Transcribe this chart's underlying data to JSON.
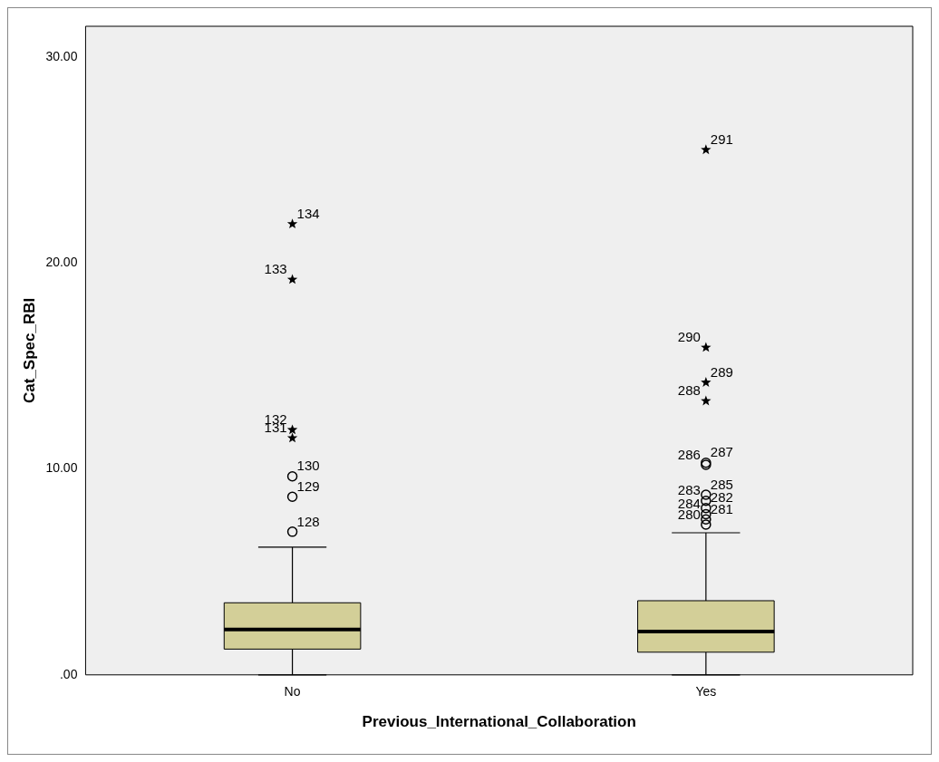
{
  "chart_data": {
    "type": "box",
    "xlabel": "Previous_International_Collaboration",
    "ylabel": "Cat_Spec_RBI",
    "categories": [
      "No",
      "Yes"
    ],
    "ylim": [
      0,
      31.5
    ],
    "yticks": [
      {
        "value": 0,
        "label": ".00"
      },
      {
        "value": 10,
        "label": "10.00"
      },
      {
        "value": 20,
        "label": "20.00"
      },
      {
        "value": 30,
        "label": "30.00"
      }
    ],
    "grid": false,
    "legend": false,
    "series": [
      {
        "type": "box",
        "color": "#d3cf98",
        "boxes": [
          {
            "low": 0,
            "q1": 1.25,
            "median": 2.2,
            "q3": 3.5,
            "high": 6.2
          },
          {
            "low": 0,
            "q1": 1.1,
            "median": 2.1,
            "q3": 3.6,
            "high": 6.9
          }
        ]
      },
      {
        "type": "scatter",
        "marker": "circle",
        "color": "#000000",
        "x": [
          "No",
          "No",
          "No",
          "Yes",
          "Yes",
          "Yes",
          "Yes",
          "Yes",
          "Yes",
          "Yes",
          "Yes"
        ],
        "values": [
          6.95,
          8.65,
          9.64,
          7.3,
          7.55,
          7.8,
          8.1,
          8.45,
          8.75,
          10.2,
          10.3
        ]
      },
      {
        "type": "scatter",
        "marker": "star",
        "color": "#000000",
        "x": [
          "No",
          "No",
          "No",
          "No",
          "Yes",
          "Yes",
          "Yes",
          "Yes"
        ],
        "values": [
          11.5,
          11.9,
          19.2,
          21.9,
          13.3,
          14.2,
          15.9,
          25.5
        ]
      }
    ],
    "annotations": [
      {
        "text": "128",
        "x": "No",
        "y": 6.95
      },
      {
        "text": "131",
        "x": "No",
        "y": 11.5
      },
      {
        "text": "129",
        "x": "No",
        "y": 8.65
      },
      {
        "text": "132",
        "x": "No",
        "y": 11.9
      },
      {
        "text": "130",
        "x": "No",
        "y": 9.64
      },
      {
        "text": "133",
        "x": "No",
        "y": 19.2
      },
      {
        "text": "134",
        "x": "No",
        "y": 21.9
      },
      {
        "text": "280",
        "x": "Yes",
        "y": 7.3
      },
      {
        "text": "281",
        "x": "Yes",
        "y": 7.55
      },
      {
        "text": "284",
        "x": "Yes",
        "y": 7.8
      },
      {
        "text": "282",
        "x": "Yes",
        "y": 8.1
      },
      {
        "text": "283",
        "x": "Yes",
        "y": 8.45
      },
      {
        "text": "285",
        "x": "Yes",
        "y": 8.75
      },
      {
        "text": "286",
        "x": "Yes",
        "y": 10.2
      },
      {
        "text": "287",
        "x": "Yes",
        "y": 10.3
      },
      {
        "text": "288",
        "x": "Yes",
        "y": 13.3
      },
      {
        "text": "289",
        "x": "Yes",
        "y": 14.2
      },
      {
        "text": "290",
        "x": "Yes",
        "y": 15.9
      },
      {
        "text": "291",
        "x": "Yes",
        "y": 25.5
      }
    ]
  }
}
